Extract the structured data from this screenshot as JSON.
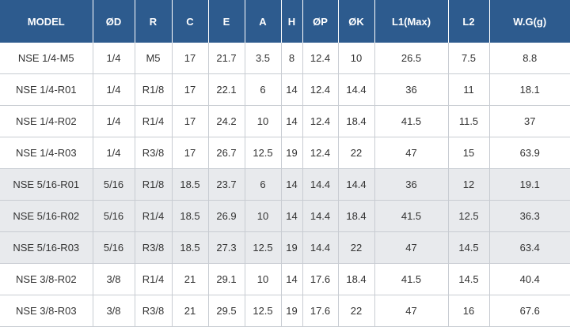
{
  "table": {
    "headers": [
      "MODEL",
      "ØD",
      "R",
      "C",
      "E",
      "A",
      "H",
      "ØP",
      "ØK",
      "L1(Max)",
      "L2",
      "W.G(g)"
    ],
    "rows": [
      {
        "shaded": false,
        "cells": [
          "NSE 1/4-M5",
          "1/4",
          "M5",
          "17",
          "21.7",
          "3.5",
          "8",
          "12.4",
          "10",
          "26.5",
          "7.5",
          "8.8"
        ]
      },
      {
        "shaded": false,
        "cells": [
          "NSE 1/4-R01",
          "1/4",
          "R1/8",
          "17",
          "22.1",
          "6",
          "14",
          "12.4",
          "14.4",
          "36",
          "11",
          "18.1"
        ]
      },
      {
        "shaded": false,
        "cells": [
          "NSE 1/4-R02",
          "1/4",
          "R1/4",
          "17",
          "24.2",
          "10",
          "14",
          "12.4",
          "18.4",
          "41.5",
          "11.5",
          "37"
        ]
      },
      {
        "shaded": false,
        "cells": [
          "NSE 1/4-R03",
          "1/4",
          "R3/8",
          "17",
          "26.7",
          "12.5",
          "19",
          "12.4",
          "22",
          "47",
          "15",
          "63.9"
        ]
      },
      {
        "shaded": true,
        "cells": [
          "NSE 5/16-R01",
          "5/16",
          "R1/8",
          "18.5",
          "23.7",
          "6",
          "14",
          "14.4",
          "14.4",
          "36",
          "12",
          "19.1"
        ]
      },
      {
        "shaded": true,
        "cells": [
          "NSE 5/16-R02",
          "5/16",
          "R1/4",
          "18.5",
          "26.9",
          "10",
          "14",
          "14.4",
          "18.4",
          "41.5",
          "12.5",
          "36.3"
        ]
      },
      {
        "shaded": true,
        "cells": [
          "NSE 5/16-R03",
          "5/16",
          "R3/8",
          "18.5",
          "27.3",
          "12.5",
          "19",
          "14.4",
          "22",
          "47",
          "14.5",
          "63.4"
        ]
      },
      {
        "shaded": false,
        "cells": [
          "NSE 3/8-R02",
          "3/8",
          "R1/4",
          "21",
          "29.1",
          "10",
          "14",
          "17.6",
          "18.4",
          "41.5",
          "14.5",
          "40.4"
        ]
      },
      {
        "shaded": false,
        "cells": [
          "NSE 3/8-R03",
          "3/8",
          "R3/8",
          "21",
          "29.5",
          "12.5",
          "19",
          "17.6",
          "22",
          "47",
          "16",
          "67.6"
        ]
      }
    ]
  }
}
